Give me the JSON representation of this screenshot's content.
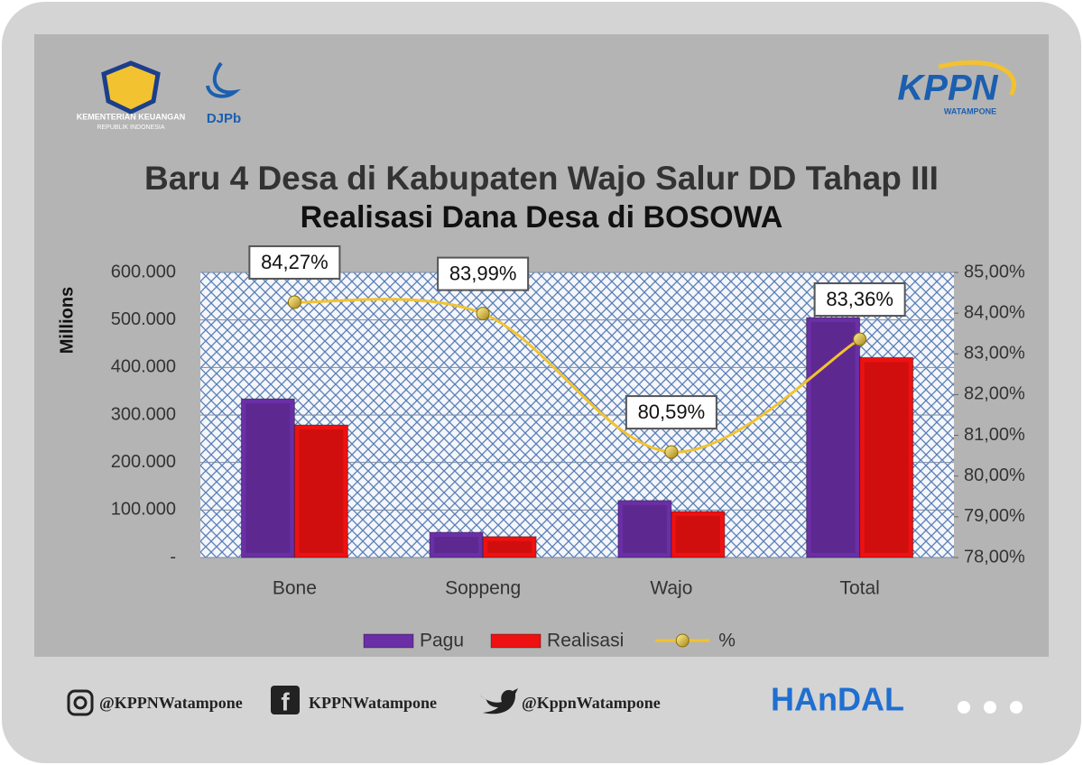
{
  "header": {
    "ministry": "KEMENTERIAN KEUANGAN",
    "ministry_sub": "REPUBLIK INDONESIA",
    "djpb": "DJPb",
    "kppn": "KPPN",
    "kppn_office": "WATAMPONE"
  },
  "chart_data": {
    "type": "bar",
    "title": "Baru 4 Desa di Kabupaten Wajo Salur DD Tahap III",
    "subtitle": "Realisasi Dana Desa di BOSOWA",
    "y_label": "Millions",
    "categories": [
      "Bone",
      "Soppeng",
      "Wajo",
      "Total"
    ],
    "series": [
      {
        "name": "Pagu",
        "color": "#6a2fa6",
        "values": [
          334000,
          53000,
          120000,
          505000
        ]
      },
      {
        "name": "Realisasi",
        "color": "#ee1111",
        "values": [
          279000,
          44000,
          97000,
          421000
        ]
      },
      {
        "name": "%",
        "color": "#f2c230",
        "type": "line",
        "axis": "y2",
        "values": [
          84.27,
          83.99,
          80.59,
          83.36
        ],
        "value_labels": [
          "84,27%",
          "83,99%",
          "80,59%",
          "83,36%"
        ]
      }
    ],
    "ylim": [
      0,
      600000
    ],
    "yticks": [
      {
        "value": 0,
        "label": "-"
      },
      {
        "value": 100000,
        "label": "100.000"
      },
      {
        "value": 200000,
        "label": "200.000"
      },
      {
        "value": 300000,
        "label": "300.000"
      },
      {
        "value": 400000,
        "label": "400.000"
      },
      {
        "value": 500000,
        "label": "500.000"
      },
      {
        "value": 600000,
        "label": "600.000"
      }
    ],
    "y2lim": [
      78,
      85
    ],
    "y2ticks": [
      {
        "value": 78,
        "label": "78,00%"
      },
      {
        "value": 79,
        "label": "79,00%"
      },
      {
        "value": 80,
        "label": "80,00%"
      },
      {
        "value": 81,
        "label": "81,00%"
      },
      {
        "value": 82,
        "label": "82,00%"
      },
      {
        "value": 83,
        "label": "83,00%"
      },
      {
        "value": 84,
        "label": "84,00%"
      },
      {
        "value": 85,
        "label": "85,00%"
      }
    ],
    "grid": true,
    "legend": "bottom"
  },
  "footer": {
    "instagram": "@KPPNWatampone",
    "facebook": "KPPNWatampone",
    "twitter": "@KppnWatampone",
    "brand": "HAnDAL"
  }
}
